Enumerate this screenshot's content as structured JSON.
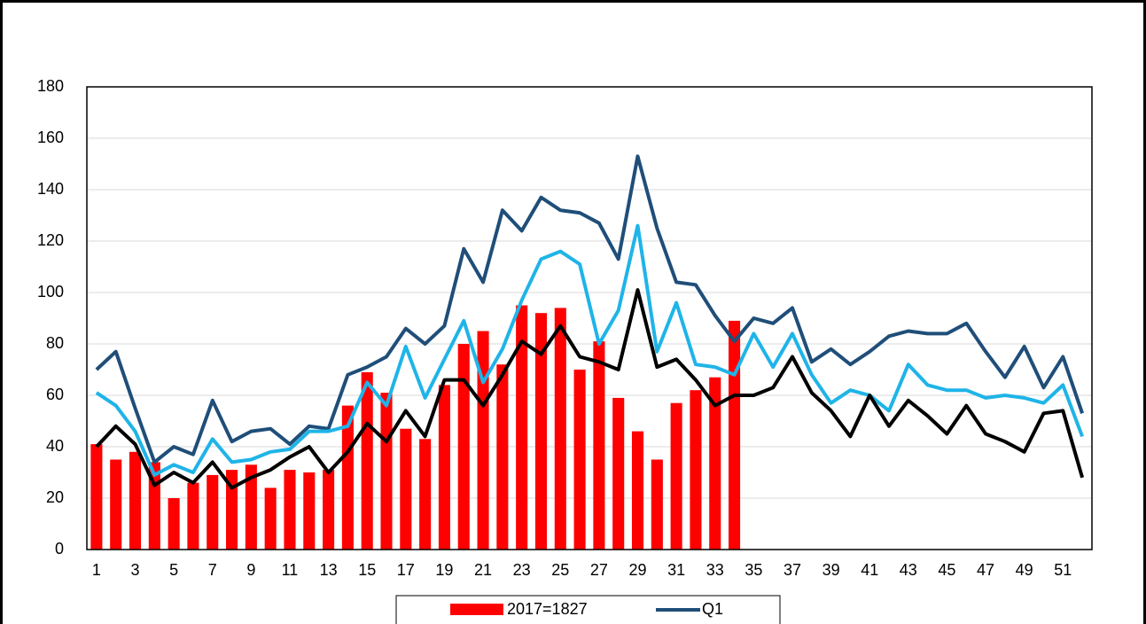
{
  "chart_data": {
    "type": "bar",
    "categories": [
      1,
      null,
      3,
      null,
      5,
      null,
      7,
      null,
      9,
      null,
      11,
      null,
      13,
      null,
      15,
      null,
      17,
      null,
      19,
      null,
      21,
      null,
      23,
      null,
      25,
      null,
      27,
      null,
      29,
      null,
      31,
      null,
      33,
      null,
      35,
      null,
      37,
      null,
      39,
      null,
      41,
      null,
      43,
      null,
      45,
      null,
      47,
      null,
      49,
      null,
      51,
      null
    ],
    "ylim": [
      0,
      180
    ],
    "yticks": [
      0,
      20,
      40,
      60,
      80,
      100,
      120,
      140,
      160,
      180
    ],
    "grid": true,
    "legend": "bottom",
    "series": [
      {
        "name": "2017=1827",
        "type": "bar",
        "color": "#ff0000",
        "values": [
          41,
          35,
          38,
          34,
          20,
          26,
          29,
          31,
          33,
          24,
          31,
          30,
          31,
          56,
          69,
          61,
          47,
          43,
          64,
          80,
          85,
          72,
          95,
          92,
          94,
          70,
          81,
          59,
          46,
          35,
          57,
          62,
          67,
          89,
          null,
          null,
          null,
          null,
          null,
          null,
          null,
          null,
          null,
          null,
          null,
          null,
          null,
          null,
          null,
          null,
          null,
          null
        ]
      },
      {
        "name": "Q1",
        "type": "line",
        "color": "#1f4e79",
        "values": [
          70,
          77,
          55,
          34,
          40,
          37,
          58,
          42,
          46,
          47,
          41,
          48,
          47,
          68,
          71,
          75,
          86,
          80,
          87,
          117,
          104,
          132,
          124,
          137,
          132,
          131,
          127,
          113,
          153,
          125,
          104,
          103,
          91,
          81,
          90,
          88,
          94,
          73,
          78,
          72,
          77,
          83,
          85,
          84,
          84,
          88,
          77,
          67,
          79,
          63,
          75,
          53
        ]
      },
      {
        "type": "line",
        "color": "#1fb4e8",
        "values": [
          61,
          56,
          46,
          29,
          33,
          30,
          43,
          34,
          35,
          38,
          39,
          46,
          46,
          48,
          65,
          56,
          79,
          59,
          74,
          89,
          65,
          78,
          97,
          113,
          116,
          111,
          80,
          93,
          126,
          77,
          96,
          72,
          71,
          68,
          84,
          71,
          84,
          68,
          57,
          62,
          60,
          54,
          72,
          64,
          62,
          62,
          59,
          60,
          59,
          57,
          64,
          44
        ]
      },
      {
        "type": "line",
        "color": "#000000",
        "values": [
          40,
          48,
          41,
          25,
          30,
          26,
          34,
          24,
          28,
          31,
          36,
          40,
          30,
          38,
          49,
          42,
          54,
          44,
          66,
          66,
          56,
          68,
          81,
          76,
          87,
          75,
          73,
          70,
          101,
          71,
          74,
          66,
          56,
          60,
          60,
          63,
          75,
          61,
          54,
          44,
          60,
          48,
          58,
          52,
          45,
          56,
          45,
          42,
          38,
          53,
          54,
          28
        ]
      }
    ]
  }
}
